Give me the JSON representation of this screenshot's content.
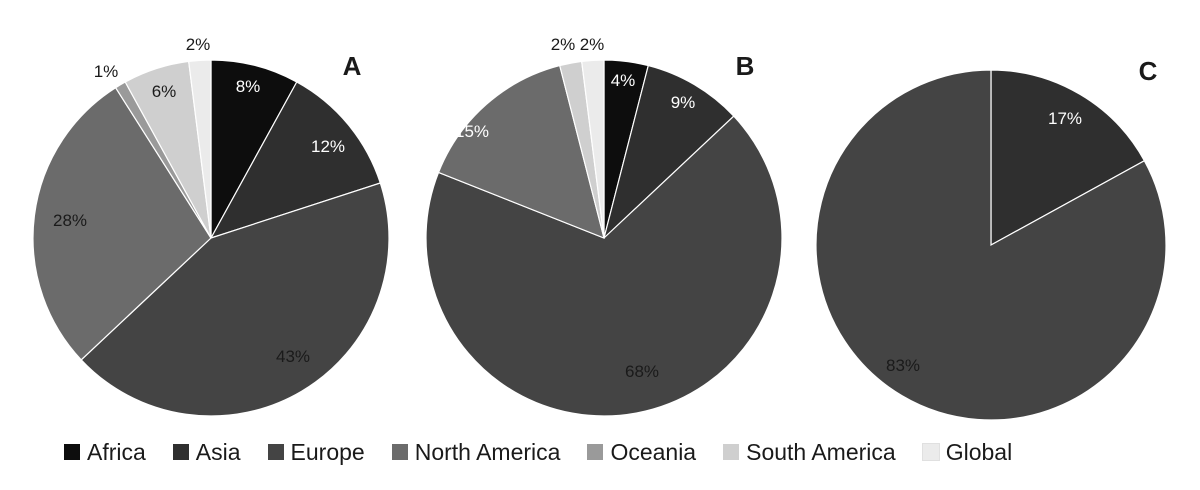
{
  "chart_data": [
    {
      "type": "pie",
      "title": "A",
      "labels": [
        "Africa",
        "Asia",
        "Europe",
        "North America",
        "Oceania",
        "South America",
        "Global"
      ],
      "values": [
        8,
        12,
        43,
        28,
        1,
        6,
        2
      ],
      "data_labels": [
        "8%",
        "12%",
        "43%",
        "28%",
        "1%",
        "6%",
        "2%"
      ],
      "start": "12 o'clock",
      "direction": "clockwise"
    },
    {
      "type": "pie",
      "title": "B",
      "labels": [
        "Africa",
        "Asia",
        "Europe",
        "North America",
        "Oceania",
        "South America",
        "Global"
      ],
      "values": [
        4,
        9,
        68,
        15,
        0,
        2,
        2
      ],
      "data_labels": [
        "4%",
        "9%",
        "68%",
        "15%",
        "",
        "2%",
        "2%"
      ],
      "start": "12 o'clock",
      "direction": "clockwise"
    },
    {
      "type": "pie",
      "title": "C",
      "labels": [
        "Africa",
        "Asia",
        "Europe",
        "North America",
        "Oceania",
        "South America",
        "Global"
      ],
      "values": [
        0,
        17,
        83,
        0,
        0,
        0,
        0
      ],
      "data_labels": [
        "",
        "17%",
        "83%",
        "",
        "",
        "",
        ""
      ],
      "start": "12 o'clock",
      "direction": "clockwise"
    }
  ],
  "legend": {
    "placement": "bottom",
    "items": [
      {
        "label": "Africa",
        "color": "#0d0d0d"
      },
      {
        "label": "Asia",
        "color": "#2f2f2f"
      },
      {
        "label": "Europe",
        "color": "#444444"
      },
      {
        "label": "North America",
        "color": "#6b6b6b"
      },
      {
        "label": "Oceania",
        "color": "#9a9a9a"
      },
      {
        "label": "South America",
        "color": "#cfcfcf"
      },
      {
        "label": "Global",
        "color": "#ebebeb"
      }
    ]
  },
  "colors": {
    "slice_border": "#ffffff",
    "label_on_dark": "#ffffff",
    "label_on_light": "#1a1a1a"
  }
}
